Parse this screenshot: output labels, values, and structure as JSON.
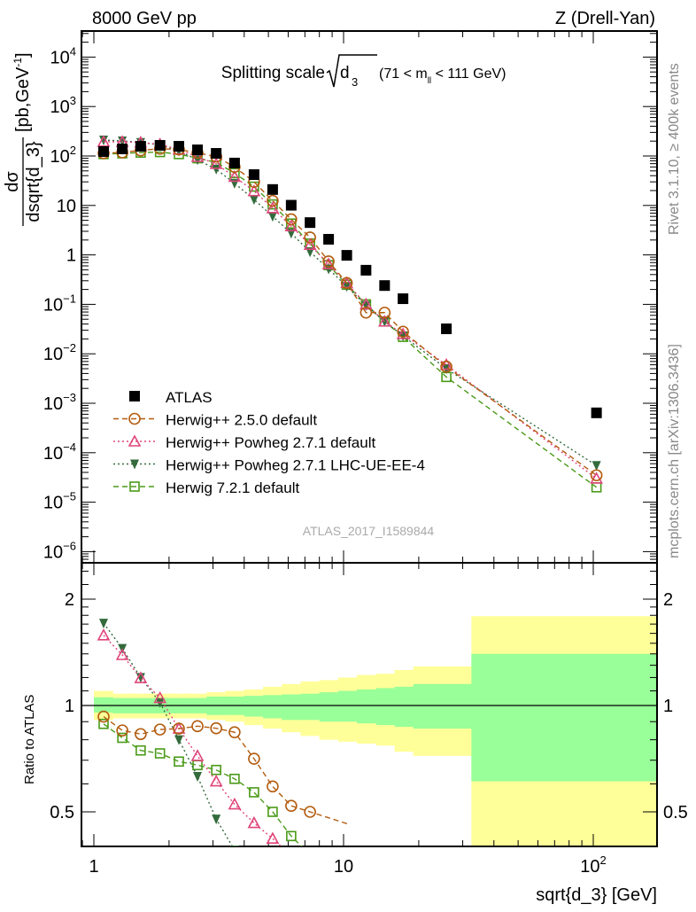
{
  "header": {
    "left": "8000 GeV pp",
    "right": "Z (Drell-Yan)"
  },
  "side_labels": {
    "rivet": "Rivet 3.1.10, ≥ 400k events",
    "mcplots": "mcplots.cern.ch [arXiv:1306.3436]"
  },
  "watermark": "ATLAS_2017_I1589844",
  "annotation": {
    "prefix": "Splitting scale",
    "sqrt_arg": "d",
    "sqrt_sub": "3",
    "range_a": "(71 < m",
    "range_sub": "ll",
    "range_b": " < 111 GeV)"
  },
  "colors": {
    "atlas": "#000000",
    "h250": "#b35c0f",
    "powheg": "#e0457b",
    "powheg_ue": "#336b3c",
    "h721": "#4a9a18",
    "band_stat": "#99ff99",
    "band_total": "#ffff99"
  },
  "chart_data": [
    {
      "type": "scatter",
      "panel": "main",
      "title": "Splitting scale sqrt(d_3) (71 < m_ll < 111 GeV)",
      "xlabel": "sqrt{d_3} [GeV]",
      "ylabel": {
        "num": "dσ",
        "den": "dsqrt{d_3}",
        "unit": "[pb,GeV",
        "unit_sup": "-1",
        "unit_end": "]"
      },
      "xscale": "log",
      "yscale": "log",
      "xlim": [
        0.89,
        180
      ],
      "ylim": [
        6.3e-07,
        35000
      ],
      "xticks": [
        {
          "v": 1,
          "label": "1"
        },
        {
          "v": 10,
          "label": "10"
        },
        {
          "v": 100,
          "label": "10",
          "sup": "2"
        }
      ],
      "yticks": [
        {
          "v": 10000.0,
          "label": "10",
          "sup": "4"
        },
        {
          "v": 1000.0,
          "label": "10",
          "sup": "3"
        },
        {
          "v": 100.0,
          "label": "10",
          "sup": "2"
        },
        {
          "v": 10,
          "label": "10"
        },
        {
          "v": 1,
          "label": "1"
        },
        {
          "v": 0.1,
          "label": "10",
          "sup": "−1"
        },
        {
          "v": 0.01,
          "label": "10",
          "sup": "−2"
        },
        {
          "v": 0.001,
          "label": "10",
          "sup": "−3"
        },
        {
          "v": 0.0001,
          "label": "10",
          "sup": "−4"
        },
        {
          "v": 1e-05,
          "label": "10",
          "sup": "−5"
        },
        {
          "v": 1e-06,
          "label": "10",
          "sup": "−6"
        }
      ],
      "legend_position": "bottom-left",
      "x": [
        1.094,
        1.3,
        1.54,
        1.84,
        2.19,
        2.6,
        3.09,
        3.66,
        4.38,
        5.2,
        6.17,
        7.34,
        8.71,
        10.3,
        12.3,
        14.6,
        17.3,
        25.8,
        103
      ],
      "series": [
        {
          "name": "ATLAS",
          "key": "atlas",
          "marker": "square-filled",
          "line": "none",
          "values": [
            123,
            139,
            157,
            164,
            157,
            133,
            113,
            72,
            42,
            21,
            10.1,
            4.5,
            2.07,
            0.98,
            0.49,
            0.24,
            0.13,
            0.032,
            0.00064
          ]
        },
        {
          "name": "Herwig++ 2.5.0 default",
          "key": "h250",
          "marker": "circle-open",
          "line": "dashed",
          "values": [
            114,
            118,
            130,
            140,
            135,
            116,
            97,
            60,
            30,
            12.4,
            5.25,
            2.25,
            0.74,
            0.27,
            0.068,
            0.068,
            0.028,
            0.0055,
            3.5e-05
          ]
        },
        {
          "name": "Herwig++ Powheg 2.7.1 default",
          "key": "powheg",
          "marker": "triangle-up-open",
          "line": "dotted",
          "values": [
            194,
            193,
            188,
            172,
            135,
            96,
            69,
            38,
            19.5,
            8.8,
            3.8,
            1.6,
            0.65,
            0.27,
            0.1,
            0.045,
            0.025,
            0.006,
            3e-05
          ]
        },
        {
          "name": "Herwig++ Powheg 2.7.1 LHC-UE-EE-4",
          "key": "powheg_ue",
          "marker": "triangle-down-filled",
          "line": "dotted",
          "values": [
            210,
            202,
            188,
            167,
            126,
            84,
            54,
            28,
            13.2,
            6.0,
            2.75,
            1.15,
            0.52,
            0.23,
            0.095,
            0.045,
            0.023,
            0.005,
            5.5e-05
          ]
        },
        {
          "name": "Herwig 7.2.1 default",
          "key": "h721",
          "marker": "square-open",
          "line": "dashed",
          "values": [
            109,
            113,
            117,
            120,
            109,
            90,
            74,
            45,
            24,
            10.5,
            4.3,
            1.7,
            0.62,
            0.25,
            0.1,
            0.045,
            0.022,
            0.0034,
            2e-05
          ]
        }
      ]
    },
    {
      "type": "scatter",
      "panel": "ratio",
      "ylabel": "Ratio to ATLAS",
      "xlabel": "sqrt{d_3} [GeV]",
      "yscale": "log",
      "ylim": [
        0.4,
        2.46
      ],
      "yticks": [
        {
          "v": 0.5,
          "label": "0.5"
        },
        {
          "v": 1,
          "label": "1"
        },
        {
          "v": 2,
          "label": "2"
        }
      ],
      "bin_edges": [
        1.0,
        1.19,
        1.41,
        1.68,
        2.0,
        2.38,
        2.83,
        3.36,
        4.0,
        4.76,
        5.66,
        6.73,
        8.0,
        9.51,
        11.3,
        13.5,
        16.0,
        19.0,
        32.5,
        180
      ],
      "band_total_up": [
        1.1,
        1.08,
        1.08,
        1.08,
        1.08,
        1.08,
        1.09,
        1.1,
        1.11,
        1.13,
        1.15,
        1.17,
        1.18,
        1.2,
        1.22,
        1.23,
        1.26,
        1.29,
        1.79
      ],
      "band_total_down": [
        0.91,
        0.92,
        0.92,
        0.92,
        0.92,
        0.92,
        0.91,
        0.9,
        0.88,
        0.86,
        0.84,
        0.82,
        0.8,
        0.79,
        0.78,
        0.77,
        0.74,
        0.72,
        0.3
      ],
      "band_stat_up": [
        1.055,
        1.05,
        1.05,
        1.05,
        1.05,
        1.05,
        1.06,
        1.06,
        1.065,
        1.07,
        1.075,
        1.08,
        1.09,
        1.1,
        1.11,
        1.12,
        1.13,
        1.15,
        1.4
      ],
      "band_stat_down": [
        0.955,
        0.95,
        0.95,
        0.95,
        0.95,
        0.95,
        0.94,
        0.94,
        0.93,
        0.92,
        0.91,
        0.91,
        0.9,
        0.9,
        0.89,
        0.88,
        0.87,
        0.86,
        0.61
      ],
      "ratios": {
        "h250": [
          0.93,
          0.85,
          0.83,
          0.855,
          0.86,
          0.874,
          0.862,
          0.84,
          0.707,
          0.59,
          0.52,
          0.5
        ],
        "powheg": [
          1.58,
          1.39,
          1.196,
          1.05,
          0.86,
          0.72,
          0.61,
          0.525,
          0.465,
          0.42,
          0.376
        ],
        "powheg_ue": [
          1.71,
          1.45,
          1.2,
          1.02,
          0.8,
          0.63,
          0.477,
          0.39
        ],
        "h721": [
          0.887,
          0.81,
          0.746,
          0.732,
          0.694,
          0.678,
          0.657,
          0.62,
          0.568,
          0.5,
          0.427,
          0.378
        ]
      }
    }
  ]
}
